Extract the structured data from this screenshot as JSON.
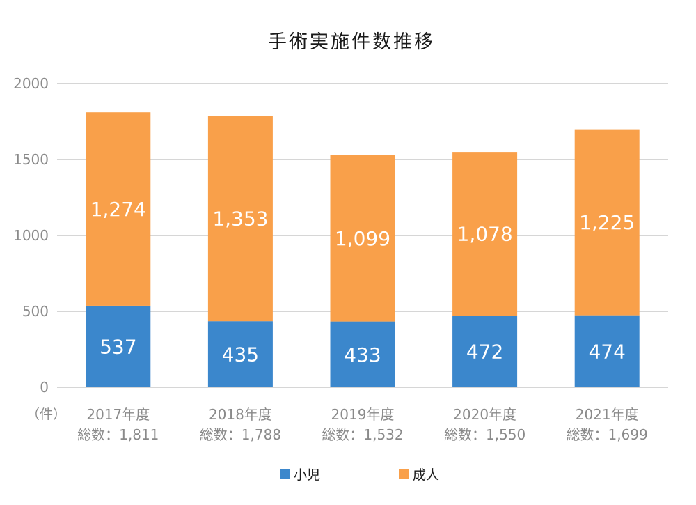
{
  "chart_data": {
    "type": "bar",
    "stacked": true,
    "title": "手術実施件数推移",
    "unit_label": "（件）",
    "categories": [
      "2017年度",
      "2018年度",
      "2019年度",
      "2020年度",
      "2021年度"
    ],
    "category_totals": [
      "総数：1,811",
      "総数：1,788",
      "総数：1,532",
      "総数：1,550",
      "総数：1,699"
    ],
    "series": [
      {
        "name": "小児",
        "color": "#3b87cc",
        "values": [
          537,
          435,
          433,
          472,
          474
        ]
      },
      {
        "name": "成人",
        "color": "#f9a04a",
        "values": [
          1274,
          1353,
          1099,
          1078,
          1225
        ]
      }
    ],
    "data_labels": [
      [
        "537",
        "435",
        "433",
        "472",
        "474"
      ],
      [
        "1,274",
        "1,353",
        "1,099",
        "1,078",
        "1,225"
      ]
    ],
    "ylim": [
      0,
      2000
    ],
    "yticks": [
      "0",
      "500",
      "1000",
      "1500",
      "2000"
    ],
    "grid": true,
    "legend_position": "bottom"
  }
}
